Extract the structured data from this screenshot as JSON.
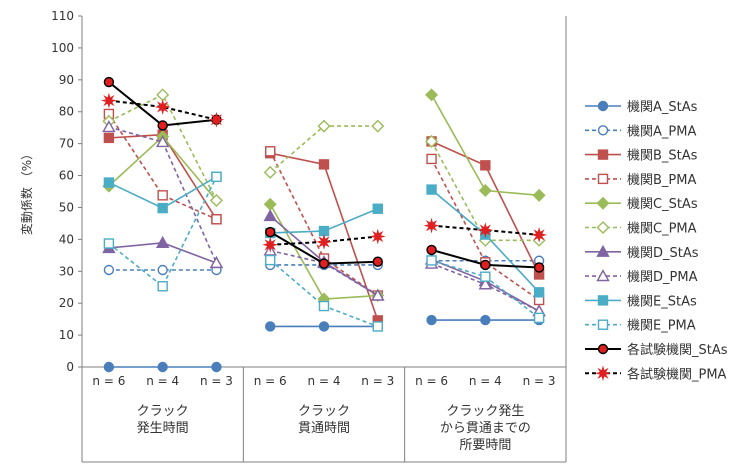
{
  "chart_data": {
    "type": "line",
    "ylabel": "変動係数 （%）",
    "ylim": [
      0,
      110
    ],
    "yticks": [
      0,
      10,
      20,
      30,
      40,
      50,
      60,
      70,
      80,
      90,
      100,
      110
    ],
    "grid": false,
    "legend_position": "right",
    "x_labels": [
      "n = 6",
      "n = 4",
      "n = 3",
      "n = 6",
      "n = 4",
      "n = 3",
      "n = 6",
      "n = 4",
      "n = 3"
    ],
    "groups": [
      {
        "label": "クラック\n発生時間"
      },
      {
        "label": "クラック\n貫通時間"
      },
      {
        "label": "クラック発生\nから貫通までの\n所要時間"
      }
    ],
    "series": [
      {
        "name": "機関A_StAs",
        "color": "#4a7ebb",
        "dashed": false,
        "marker": "circle",
        "filled": true,
        "values": [
          [
            0,
            0,
            0
          ],
          [
            12.7,
            12.7,
            12.7
          ],
          [
            14.7,
            14.7,
            14.7
          ]
        ]
      },
      {
        "name": "機関A_PMA",
        "color": "#4a7ebb",
        "dashed": true,
        "marker": "circle",
        "filled": false,
        "values": [
          [
            30.4,
            30.4,
            30.4
          ],
          [
            32,
            32,
            32
          ],
          [
            33.3,
            33.3,
            33.3
          ]
        ]
      },
      {
        "name": "機関B_StAs",
        "color": "#c0504d",
        "dashed": false,
        "marker": "square",
        "filled": true,
        "values": [
          [
            71.8,
            72.8,
            46.3
          ],
          [
            67,
            63.5,
            14.6
          ],
          [
            70.7,
            63.2,
            29
          ]
        ]
      },
      {
        "name": "機関B_PMA",
        "color": "#c0504d",
        "dashed": true,
        "marker": "square",
        "filled": false,
        "values": [
          [
            79.3,
            53.8,
            46.3
          ],
          [
            67.6,
            34,
            22.4
          ],
          [
            65.2,
            32.8,
            21
          ]
        ]
      },
      {
        "name": "機関C_StAs",
        "color": "#9bbb59",
        "dashed": false,
        "marker": "diamond",
        "filled": true,
        "values": [
          [
            56.7,
            72.2,
            52.2
          ],
          [
            51,
            21.3,
            22.4
          ],
          [
            85.3,
            55.3,
            53.8
          ]
        ]
      },
      {
        "name": "機関C_PMA",
        "color": "#9bbb59",
        "dashed": true,
        "marker": "diamond",
        "filled": false,
        "values": [
          [
            77,
            85.3,
            52.2
          ],
          [
            61,
            75.5,
            75.5
          ],
          [
            70.7,
            39.7,
            39.7
          ]
        ]
      },
      {
        "name": "機関D_StAs",
        "color": "#8064a2",
        "dashed": false,
        "marker": "triangle",
        "filled": true,
        "values": [
          [
            37.3,
            38.9,
            32.6
          ],
          [
            47.3,
            32.9,
            22.4
          ],
          [
            33.7,
            26.9,
            17.5
          ]
        ]
      },
      {
        "name": "機関D_PMA",
        "color": "#8064a2",
        "dashed": true,
        "marker": "triangle",
        "filled": false,
        "values": [
          [
            75.2,
            70.5,
            32.6
          ],
          [
            36.5,
            32.6,
            22.4
          ],
          [
            32.4,
            25.9,
            17.5
          ]
        ]
      },
      {
        "name": "機関E_StAs",
        "color": "#4bacc6",
        "dashed": false,
        "marker": "square",
        "filled": true,
        "values": [
          [
            57.8,
            49.8,
            59.6
          ],
          [
            42,
            42.6,
            49.6
          ],
          [
            55.6,
            41.5,
            23.4
          ]
        ]
      },
      {
        "name": "機関E_PMA",
        "color": "#4bacc6",
        "dashed": true,
        "marker": "square",
        "filled": false,
        "values": [
          [
            38.7,
            25.3,
            59.6
          ],
          [
            33.5,
            19.1,
            12.7
          ],
          [
            33.4,
            28.3,
            15.4
          ]
        ]
      },
      {
        "name": "各試験機関_StAs",
        "color": "#000000",
        "dashed": false,
        "marker": "circle",
        "filled": true,
        "marker_fill": "#e02020",
        "values": [
          [
            89.3,
            75.7,
            77.5
          ],
          [
            42.3,
            32.4,
            33
          ],
          [
            36.7,
            32,
            31.2
          ]
        ]
      },
      {
        "name": "各試験機関_PMA",
        "color": "#000000",
        "dashed": true,
        "marker": "star",
        "filled": true,
        "marker_fill": "#e02020",
        "values": [
          [
            83.5,
            81.5,
            77.5
          ],
          [
            38.3,
            39.2,
            40.9
          ],
          [
            44.3,
            42.9,
            41.4
          ]
        ]
      }
    ]
  }
}
